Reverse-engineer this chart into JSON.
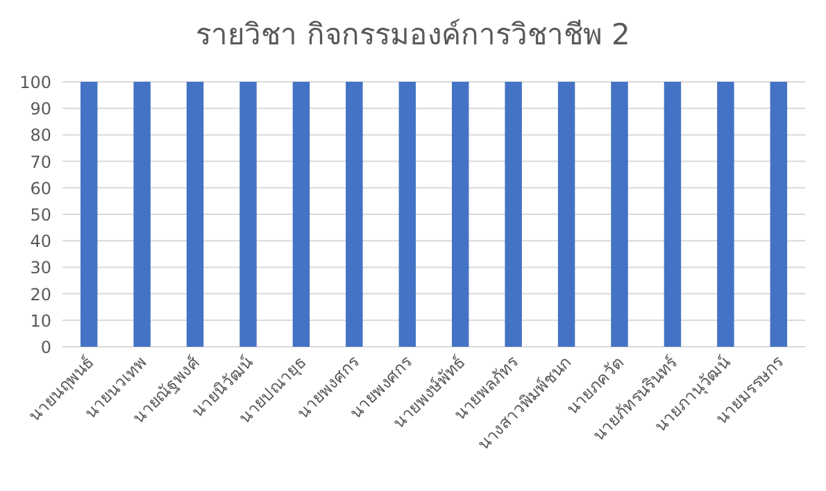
{
  "chart_data": {
    "type": "bar",
    "title": "รายวิชา กิจกรรมองค์การวิชาชีพ 2",
    "categories": [
      "นายนฤพนธ์",
      "นายนวเทพ",
      "นายณัฐพงศ์",
      "นายนิวัฒน์",
      "นายปณายุธ",
      "นายพงศกร",
      "นายพงศกร",
      "นายพงษ์พัทธ์",
      "นายพลภัทร",
      "นางสาวพิมพ์ชนก",
      "นายภควัต",
      "นายภัทรนรินทร์",
      "นายภานุวัฒน์",
      "นายมรรษกร"
    ],
    "values": [
      100,
      100,
      100,
      100,
      100,
      100,
      100,
      100,
      100,
      100,
      100,
      100,
      100,
      100
    ],
    "color": "#4472c4",
    "ylim": [
      0,
      100
    ],
    "yticks": [
      0,
      10,
      20,
      30,
      40,
      50,
      60,
      70,
      80,
      90,
      100
    ],
    "grid": "y"
  }
}
